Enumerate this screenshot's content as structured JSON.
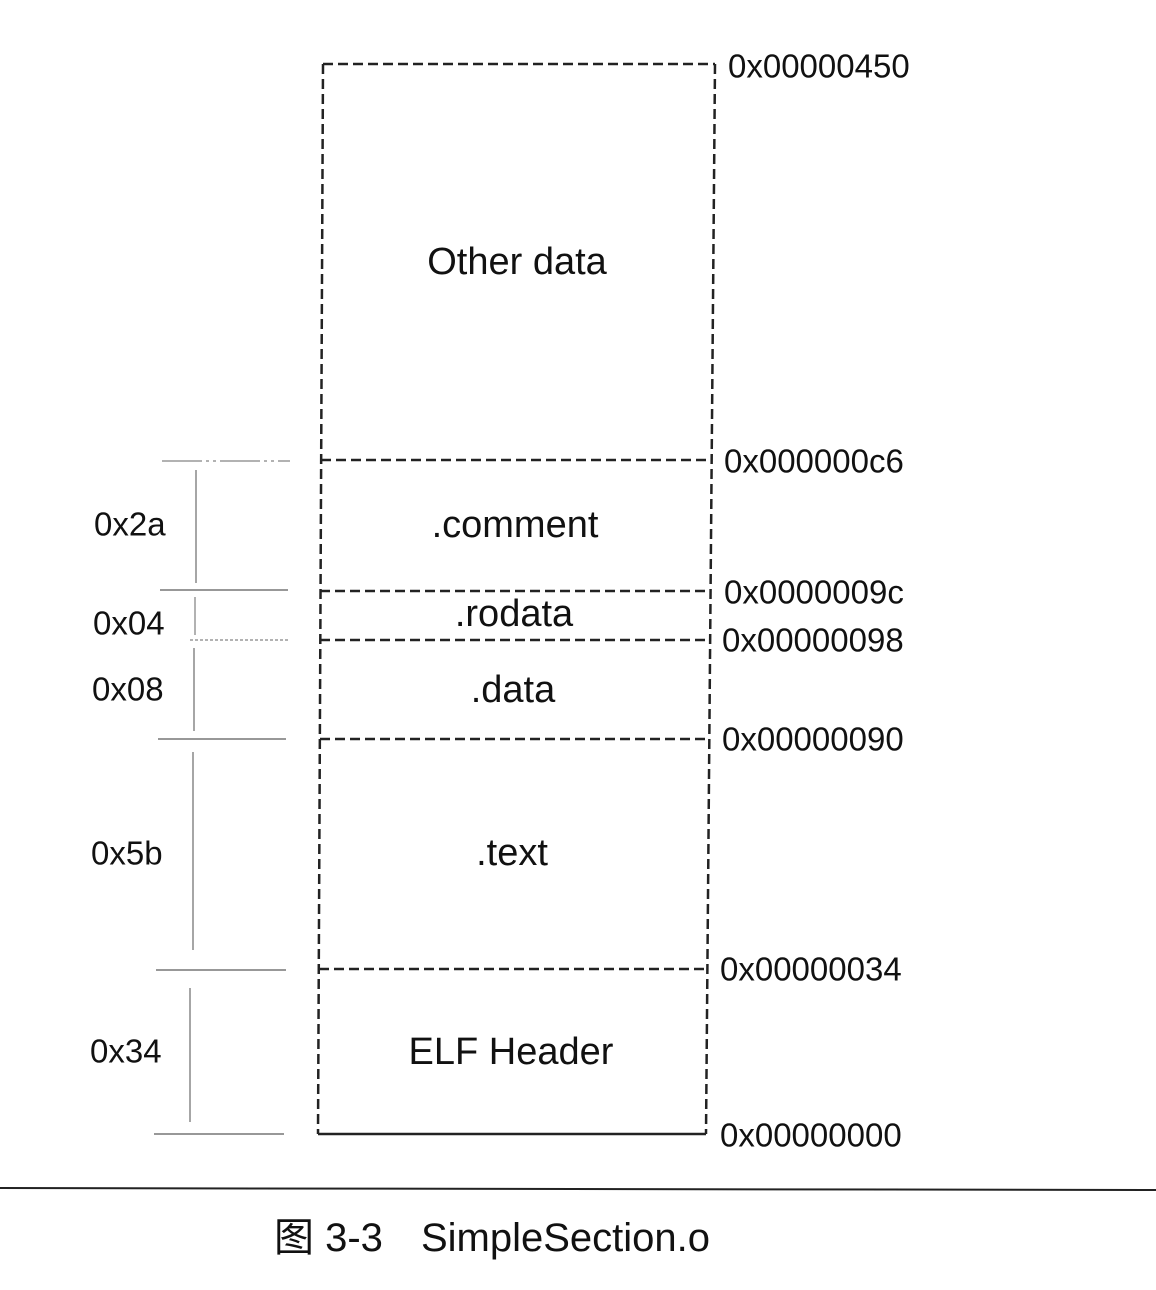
{
  "sections": [
    {
      "name": "Other data"
    },
    {
      "name": ".comment",
      "size": "0x2a"
    },
    {
      "name": ".rodata",
      "size": "0x04"
    },
    {
      "name": ".data",
      "size": "0x08"
    },
    {
      "name": ".text",
      "size": "0x5b"
    },
    {
      "name": "ELF Header",
      "size": "0x34"
    }
  ],
  "addresses": [
    "0x00000450",
    "0x000000c6",
    "0x0000009c",
    "0x00000098",
    "0x00000090",
    "0x00000034",
    "0x00000000"
  ],
  "caption": {
    "figure_number": "图 3-3",
    "title": "SimpleSection.o"
  }
}
